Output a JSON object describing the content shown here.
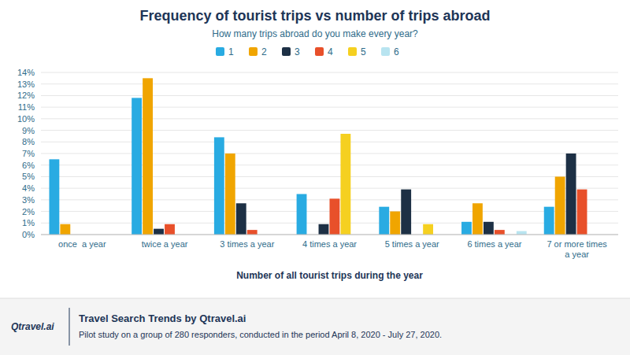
{
  "chart_data": {
    "type": "bar",
    "title": "Frequency of tourist trips vs number of trips abroad",
    "subtitle": "How many trips abroad do you make every year?",
    "xlabel": "Number of all tourist trips during the year",
    "categories": [
      "once  a year",
      "twice a year",
      "3 times a year",
      "4 times a year",
      "5 times a year",
      "6 times a year",
      "7 or more times\na year"
    ],
    "series": [
      {
        "name": "1",
        "color": "#29ABE2",
        "values": [
          6.5,
          11.8,
          8.4,
          3.5,
          2.4,
          1.1,
          2.4
        ]
      },
      {
        "name": "2",
        "color": "#F0A500",
        "values": [
          0.9,
          13.5,
          7.0,
          0.0,
          2.0,
          2.7,
          5.0
        ]
      },
      {
        "name": "3",
        "color": "#1D3045",
        "values": [
          0.0,
          0.5,
          2.7,
          0.9,
          3.9,
          1.1,
          7.0
        ]
      },
      {
        "name": "4",
        "color": "#E8502A",
        "values": [
          0.0,
          0.9,
          0.4,
          3.1,
          0.0,
          0.4,
          3.9
        ]
      },
      {
        "name": "5",
        "color": "#F5D020",
        "values": [
          0.0,
          0.0,
          0.0,
          8.7,
          0.9,
          0.0,
          0.0
        ]
      },
      {
        "name": "6",
        "color": "#B8E4F0",
        "values": [
          0.0,
          0.0,
          0.0,
          0.0,
          0.0,
          0.3,
          0.0
        ]
      }
    ],
    "ylim": [
      0,
      14
    ],
    "yticks": [
      {
        "value": 0,
        "label": "0%"
      },
      {
        "value": 1,
        "label": "1%"
      },
      {
        "value": 2,
        "label": "2%"
      },
      {
        "value": 3,
        "label": "3%"
      },
      {
        "value": 4,
        "label": "4%"
      },
      {
        "value": 5,
        "label": "5%"
      },
      {
        "value": 6,
        "label": "6%"
      },
      {
        "value": 7,
        "label": "7%"
      },
      {
        "value": 8,
        "label": "8%"
      },
      {
        "value": 9,
        "label": "9%"
      },
      {
        "value": 10,
        "label": "10%"
      },
      {
        "value": 11,
        "label": "11%"
      },
      {
        "value": 12,
        "label": "12%"
      },
      {
        "value": 13,
        "label": "13%"
      },
      {
        "value": 14,
        "label": "14%"
      }
    ],
    "grid": true,
    "legend": "top",
    "annotations": [
      "Qtravel.ai",
      "Travel Search Trends by Qtravel.ai",
      "Pilot study on a group of 280 responders, conducted in the period April 8, 2020 - July 27, 2020."
    ]
  }
}
